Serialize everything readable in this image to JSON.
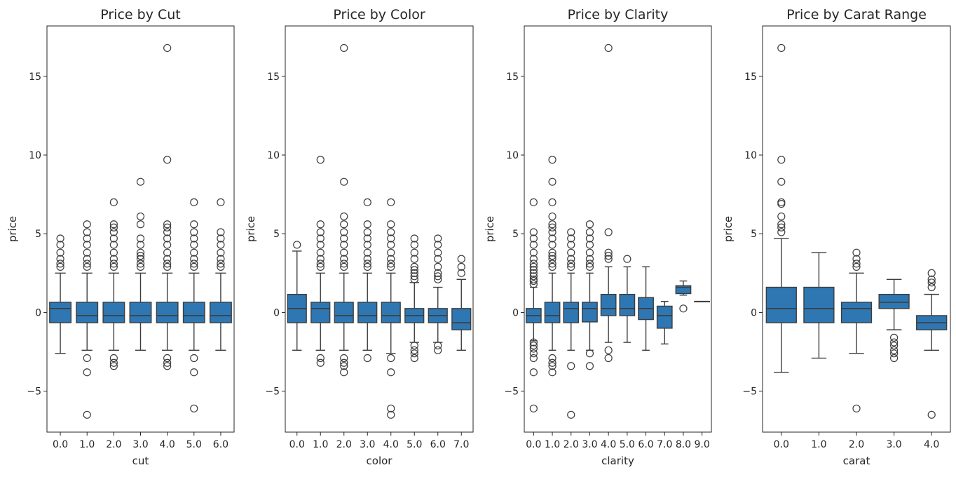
{
  "colors": {
    "box_fill": "#2e77b2",
    "edge": "#3d3d3d",
    "axis": "#262626",
    "background": "#ffffff"
  },
  "chart_data": [
    {
      "type": "box",
      "title": "Price by Cut",
      "xlabel": "cut",
      "ylabel": "price",
      "ylim": [
        -7.6,
        18.2
      ],
      "yticks": [
        -5,
        0,
        5,
        10,
        15
      ],
      "ytick_labels": [
        "−5",
        "0",
        "5",
        "10",
        "15"
      ],
      "categories": [
        "0.0",
        "1.0",
        "2.0",
        "3.0",
        "4.0",
        "5.0",
        "6.0"
      ],
      "boxes": [
        {
          "q1": -0.65,
          "median": 0.25,
          "q3": 0.65,
          "whisker_low": -2.6,
          "whisker_high": 2.5,
          "fliers": [
            2.9,
            3.1,
            3.4,
            3.8,
            4.3,
            4.7
          ]
        },
        {
          "q1": -0.65,
          "median": -0.2,
          "q3": 0.65,
          "whisker_low": -2.4,
          "whisker_high": 2.5,
          "fliers": [
            2.9,
            3.1,
            3.4,
            3.8,
            4.3,
            4.7,
            5.1,
            5.6,
            -2.9,
            -3.8,
            -6.5
          ]
        },
        {
          "q1": -0.65,
          "median": -0.2,
          "q3": 0.65,
          "whisker_low": -2.4,
          "whisker_high": 2.5,
          "fliers": [
            2.9,
            3.1,
            3.4,
            3.8,
            4.3,
            4.7,
            5.1,
            5.4,
            5.6,
            7.0,
            -2.9,
            -3.2,
            -3.4
          ]
        },
        {
          "q1": -0.65,
          "median": -0.2,
          "q3": 0.65,
          "whisker_low": -2.4,
          "whisker_high": 2.5,
          "fliers": [
            2.9,
            3.1,
            3.4,
            3.6,
            3.8,
            4.3,
            4.7,
            5.6,
            6.1,
            8.3
          ]
        },
        {
          "q1": -0.65,
          "median": -0.2,
          "q3": 0.65,
          "whisker_low": -2.4,
          "whisker_high": 2.5,
          "fliers": [
            2.9,
            3.1,
            3.4,
            3.8,
            4.3,
            4.7,
            5.1,
            5.4,
            5.6,
            9.7,
            16.8,
            -2.9,
            -3.2,
            -3.4
          ]
        },
        {
          "q1": -0.65,
          "median": -0.2,
          "q3": 0.65,
          "whisker_low": -2.4,
          "whisker_high": 2.5,
          "fliers": [
            2.9,
            3.1,
            3.4,
            3.8,
            4.3,
            4.7,
            5.1,
            5.6,
            7.0,
            -2.9,
            -3.8,
            -6.1
          ]
        },
        {
          "q1": -0.65,
          "median": -0.2,
          "q3": 0.65,
          "whisker_low": -2.4,
          "whisker_high": 2.5,
          "fliers": [
            2.9,
            3.1,
            3.4,
            3.8,
            4.3,
            4.7,
            5.1,
            7.0
          ]
        }
      ]
    },
    {
      "type": "box",
      "title": "Price by Color",
      "xlabel": "color",
      "ylabel": "price",
      "ylim": [
        -7.6,
        18.2
      ],
      "yticks": [
        -5,
        0,
        5,
        10,
        15
      ],
      "ytick_labels": [
        "−5",
        "0",
        "5",
        "10",
        "15"
      ],
      "categories": [
        "0.0",
        "1.0",
        "2.0",
        "3.0",
        "4.0",
        "5.0",
        "6.0",
        "7.0"
      ],
      "boxes": [
        {
          "q1": -0.65,
          "median": 0.25,
          "q3": 1.15,
          "whisker_low": -2.4,
          "whisker_high": 3.9,
          "fliers": [
            4.3
          ]
        },
        {
          "q1": -0.65,
          "median": 0.25,
          "q3": 0.65,
          "whisker_low": -2.4,
          "whisker_high": 2.5,
          "fliers": [
            2.9,
            3.1,
            3.4,
            3.8,
            4.3,
            4.7,
            5.1,
            5.6,
            9.7,
            -2.9,
            -3.2
          ]
        },
        {
          "q1": -0.65,
          "median": -0.2,
          "q3": 0.65,
          "whisker_low": -2.4,
          "whisker_high": 2.5,
          "fliers": [
            2.9,
            3.1,
            3.4,
            3.8,
            4.3,
            4.7,
            5.1,
            5.6,
            6.1,
            8.3,
            16.8,
            -2.9,
            -3.2,
            -3.4,
            -3.8
          ]
        },
        {
          "q1": -0.65,
          "median": -0.2,
          "q3": 0.65,
          "whisker_low": -2.4,
          "whisker_high": 2.5,
          "fliers": [
            2.9,
            3.1,
            3.4,
            3.8,
            4.3,
            4.7,
            5.1,
            5.6,
            7.0,
            -2.9
          ]
        },
        {
          "q1": -0.65,
          "median": -0.2,
          "q3": 0.65,
          "whisker_low": -2.6,
          "whisker_high": 2.5,
          "fliers": [
            2.9,
            3.1,
            3.4,
            3.8,
            4.3,
            4.7,
            5.1,
            5.6,
            7.0,
            -2.9,
            -3.8,
            -6.1,
            -6.5
          ]
        },
        {
          "q1": -0.65,
          "median": -0.2,
          "q3": 0.25,
          "whisker_low": -1.9,
          "whisker_high": 1.9,
          "fliers": [
            2.1,
            2.3,
            2.5,
            2.7,
            2.9,
            3.4,
            3.8,
            4.3,
            4.7,
            -2.1,
            -2.4,
            -2.6,
            -2.9
          ]
        },
        {
          "q1": -0.65,
          "median": -0.2,
          "q3": 0.25,
          "whisker_low": -1.9,
          "whisker_high": 1.6,
          "fliers": [
            2.1,
            2.3,
            2.5,
            2.9,
            3.4,
            3.8,
            4.3,
            4.7,
            -2.1,
            -2.4
          ]
        },
        {
          "q1": -1.1,
          "median": -0.65,
          "q3": 0.25,
          "whisker_low": -2.4,
          "whisker_high": 2.1,
          "fliers": [
            2.5,
            2.9,
            3.4
          ]
        }
      ]
    },
    {
      "type": "box",
      "title": "Price by Clarity",
      "xlabel": "clarity",
      "ylabel": "price",
      "ylim": [
        -7.6,
        18.2
      ],
      "yticks": [
        -5,
        0,
        5,
        10,
        15
      ],
      "ytick_labels": [
        "−5",
        "0",
        "5",
        "10",
        "15"
      ],
      "categories": [
        "0.0",
        "1.0",
        "2.0",
        "3.0",
        "4.0",
        "5.0",
        "6.0",
        "7.0",
        "8.0",
        "9.0"
      ],
      "boxes": [
        {
          "q1": -0.65,
          "median": -0.2,
          "q3": 0.25,
          "whisker_low": -1.8,
          "whisker_high": 1.6,
          "fliers": [
            1.8,
            2.0,
            2.1,
            2.3,
            2.5,
            2.7,
            2.9,
            3.1,
            3.4,
            3.8,
            4.3,
            4.7,
            5.1,
            7.0,
            -1.9,
            -2.1,
            -2.3,
            -2.6,
            -2.9,
            -3.8,
            -6.1
          ]
        },
        {
          "q1": -0.65,
          "median": -0.2,
          "q3": 0.65,
          "whisker_low": -2.4,
          "whisker_high": 2.5,
          "fliers": [
            2.9,
            3.1,
            3.4,
            3.6,
            3.8,
            4.3,
            4.7,
            5.1,
            5.4,
            5.6,
            6.1,
            7.0,
            8.3,
            9.7,
            -2.9,
            -3.2,
            -3.4,
            -3.8
          ]
        },
        {
          "q1": -0.65,
          "median": 0.25,
          "q3": 0.65,
          "whisker_low": -2.4,
          "whisker_high": 2.5,
          "fliers": [
            2.9,
            3.1,
            3.4,
            3.8,
            4.3,
            4.7,
            5.1,
            -3.4,
            -6.5
          ]
        },
        {
          "q1": -0.6,
          "median": 0.25,
          "q3": 0.65,
          "whisker_low": -2.4,
          "whisker_high": 2.5,
          "fliers": [
            2.9,
            3.1,
            3.4,
            3.8,
            4.3,
            4.7,
            5.1,
            5.6,
            -2.6,
            -3.4
          ]
        },
        {
          "q1": -0.2,
          "median": 0.25,
          "q3": 1.15,
          "whisker_low": -1.9,
          "whisker_high": 2.9,
          "fliers": [
            3.4,
            3.6,
            3.8,
            5.1,
            16.8,
            -2.4,
            -2.9
          ]
        },
        {
          "q1": -0.2,
          "median": 0.25,
          "q3": 1.15,
          "whisker_low": -1.9,
          "whisker_high": 2.9,
          "fliers": [
            3.4
          ]
        },
        {
          "q1": -0.45,
          "median": 0.25,
          "q3": 0.95,
          "whisker_low": -2.4,
          "whisker_high": 2.9,
          "fliers": []
        },
        {
          "q1": -1.0,
          "median": -0.2,
          "q3": 0.4,
          "whisker_low": -2.0,
          "whisker_high": 0.7,
          "fliers": []
        },
        {
          "q1": 1.2,
          "median": 1.6,
          "q3": 1.7,
          "whisker_low": 1.1,
          "whisker_high": 2.0,
          "fliers": [
            0.25
          ]
        },
        {
          "q1": 0.7,
          "median": 0.7,
          "q3": 0.7,
          "whisker_low": 0.7,
          "whisker_high": 0.7,
          "fliers": []
        }
      ]
    },
    {
      "type": "box",
      "title": "Price by Carat Range",
      "xlabel": "carat",
      "ylabel": "price",
      "ylim": [
        -7.6,
        18.2
      ],
      "yticks": [
        -5,
        0,
        5,
        10,
        15
      ],
      "ytick_labels": [
        "−5",
        "0",
        "5",
        "10",
        "15"
      ],
      "categories": [
        "0.0",
        "1.0",
        "2.0",
        "3.0",
        "4.0"
      ],
      "boxes": [
        {
          "q1": -0.65,
          "median": 0.25,
          "q3": 1.6,
          "whisker_low": -3.8,
          "whisker_high": 4.7,
          "fliers": [
            5.1,
            5.4,
            5.6,
            6.1,
            6.9,
            7.0,
            8.3,
            9.7,
            16.8
          ]
        },
        {
          "q1": -0.65,
          "median": 0.25,
          "q3": 1.6,
          "whisker_low": -2.9,
          "whisker_high": 3.8,
          "fliers": []
        },
        {
          "q1": -0.65,
          "median": 0.25,
          "q3": 0.65,
          "whisker_low": -2.6,
          "whisker_high": 2.5,
          "fliers": [
            2.9,
            3.1,
            3.4,
            3.8,
            -6.1
          ]
        },
        {
          "q1": 0.25,
          "median": 0.65,
          "q3": 1.15,
          "whisker_low": -1.1,
          "whisker_high": 2.1,
          "fliers": [
            -1.6,
            -1.9,
            -2.1,
            -2.4,
            -2.6,
            -2.9
          ]
        },
        {
          "q1": -1.1,
          "median": -0.65,
          "q3": -0.2,
          "whisker_low": -2.4,
          "whisker_high": 1.15,
          "fliers": [
            1.6,
            1.9,
            2.1,
            2.5,
            -6.5
          ]
        }
      ]
    }
  ]
}
